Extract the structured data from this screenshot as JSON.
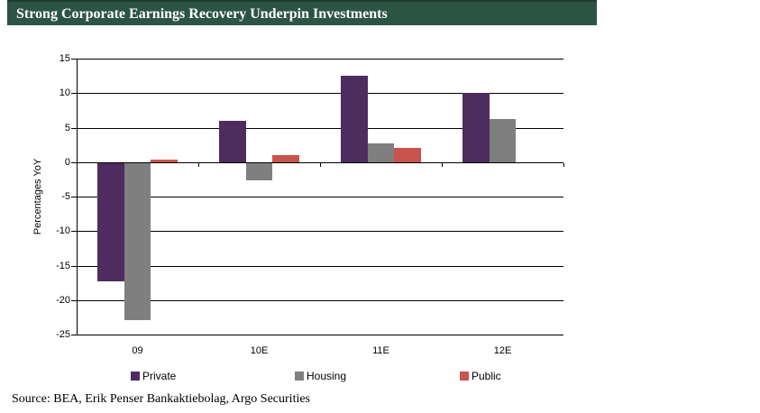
{
  "header": {
    "title": "Strong Corporate Earnings Recovery Underpin Investments"
  },
  "chart_data": {
    "type": "bar",
    "title": "Strong Corporate Earnings Recovery Underpin Investments",
    "categories": [
      "09",
      "10E",
      "11E",
      "12E"
    ],
    "series": [
      {
        "name": "Private",
        "color": "#4F2C5F",
        "values": [
          -17.2,
          6.0,
          12.5,
          10.0
        ]
      },
      {
        "name": "Housing",
        "color": "#7F7F7F",
        "values": [
          -22.8,
          -2.5,
          2.7,
          6.2
        ]
      },
      {
        "name": "Public",
        "color": "#C9534E",
        "values": [
          0.3,
          1.0,
          2.1,
          0
        ]
      }
    ],
    "xlabel": "",
    "ylabel": "Percentages YoY",
    "ylim": [
      -25,
      15
    ],
    "yticks": [
      15,
      10,
      5,
      0,
      -5,
      -10,
      -15,
      -20,
      -25
    ],
    "grid": true,
    "legend_position": "bottom"
  },
  "colors": {
    "header_background": "#2C5445",
    "header_text": "#FFFFFF",
    "axis": "#000000"
  },
  "footer": {
    "source": "Source: BEA, Erik Penser Bankaktiebolag, Argo Securities"
  }
}
